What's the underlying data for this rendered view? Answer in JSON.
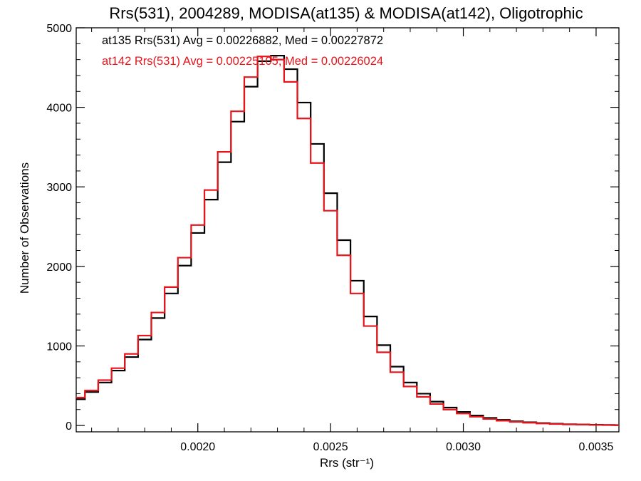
{
  "chart_data": {
    "type": "line",
    "title": "Rrs(531), 2004289, MODISA(at135) & MODISA(at142), Oligotrophic",
    "xlabel": "Rrs (str⁻¹)",
    "ylabel": "Number of Observations",
    "xlim": [
      0.001542,
      0.003586
    ],
    "ylim": [
      -80,
      5000
    ],
    "x_ticks": [
      {
        "value": 0.002,
        "label": "0.0020"
      },
      {
        "value": 0.0025,
        "label": "0.0025"
      },
      {
        "value": 0.003,
        "label": "0.0030"
      },
      {
        "value": 0.0035,
        "label": "0.0035"
      }
    ],
    "y_ticks": [
      {
        "value": 0,
        "label": "0"
      },
      {
        "value": 1000,
        "label": "1000"
      },
      {
        "value": 2000,
        "label": "2000"
      },
      {
        "value": 3000,
        "label": "3000"
      },
      {
        "value": 4000,
        "label": "4000"
      },
      {
        "value": 5000,
        "label": "5000"
      }
    ],
    "grid": false,
    "legend_placement": "top-left",
    "series": [
      {
        "name": "at135 Rrs(531) Avg = 0.00226882, Med = 0.00227872",
        "color": "#000000",
        "x": [
          0.00155,
          0.0016,
          0.00165,
          0.0017,
          0.00175,
          0.0018,
          0.00185,
          0.0019,
          0.00195,
          0.002,
          0.00205,
          0.0021,
          0.00215,
          0.0022,
          0.00225,
          0.0023,
          0.00235,
          0.0024,
          0.00245,
          0.0025,
          0.00255,
          0.0026,
          0.00265,
          0.0027,
          0.00275,
          0.0028,
          0.00285,
          0.0029,
          0.00295,
          0.003,
          0.00305,
          0.0031,
          0.00315,
          0.0032,
          0.00325,
          0.0033,
          0.00335,
          0.0034,
          0.00345,
          0.0035,
          0.00355,
          0.00359
        ],
        "y": [
          330,
          420,
          540,
          690,
          860,
          1080,
          1350,
          1660,
          2010,
          2420,
          2840,
          3310,
          3820,
          4260,
          4580,
          4650,
          4480,
          4060,
          3540,
          2920,
          2330,
          1820,
          1370,
          1010,
          740,
          540,
          400,
          300,
          225,
          170,
          125,
          95,
          70,
          52,
          40,
          30,
          22,
          16,
          12,
          9,
          6,
          5
        ]
      },
      {
        "name": "at142 Rrs(531) Avg = 0.00225105, Med = 0.00226024",
        "color": "#e8141b",
        "x": [
          0.00155,
          0.0016,
          0.00165,
          0.0017,
          0.00175,
          0.0018,
          0.00185,
          0.0019,
          0.00195,
          0.002,
          0.00205,
          0.0021,
          0.00215,
          0.0022,
          0.00225,
          0.0023,
          0.00235,
          0.0024,
          0.00245,
          0.0025,
          0.00255,
          0.0026,
          0.00265,
          0.0027,
          0.00275,
          0.0028,
          0.00285,
          0.0029,
          0.00295,
          0.003,
          0.00305,
          0.0031,
          0.00315,
          0.0032,
          0.00325,
          0.0033,
          0.00335,
          0.0034,
          0.00345,
          0.0035,
          0.00355,
          0.00359
        ],
        "y": [
          350,
          440,
          570,
          720,
          900,
          1130,
          1420,
          1740,
          2110,
          2520,
          2960,
          3440,
          3950,
          4380,
          4640,
          4600,
          4320,
          3860,
          3300,
          2700,
          2140,
          1660,
          1250,
          920,
          670,
          490,
          360,
          270,
          200,
          150,
          110,
          82,
          60,
          45,
          34,
          25,
          18,
          13,
          10,
          7,
          5,
          4
        ]
      }
    ]
  }
}
